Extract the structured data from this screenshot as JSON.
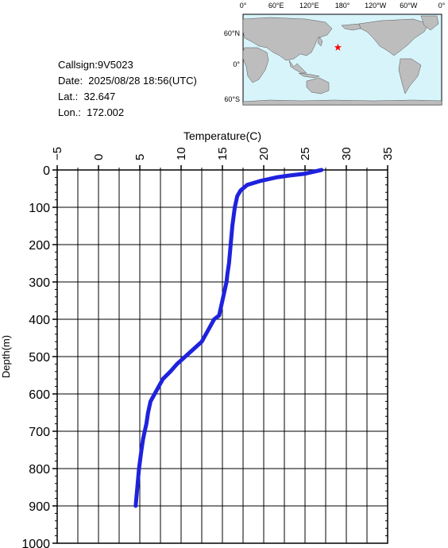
{
  "station": {
    "callsign_label": "Callsign:9V5023",
    "date_label": "Date:  2025/08/28 18:56(UTC)",
    "lat_label": "Lat.:  32.647",
    "lon_label": "Lon.:  172.002"
  },
  "map": {
    "lon_ticks": [
      "0°",
      "60°E",
      "120°E",
      "180°",
      "120°W",
      "60°W",
      "0°"
    ],
    "lat_ticks": [
      "60°N",
      "0°",
      "60°S"
    ],
    "ocean_color": "#d8f4fb",
    "land_color": "#bdbdbd",
    "marker_color": "#ff0000",
    "marker": {
      "lat": 32.647,
      "lon": 172.002
    }
  },
  "chart_data": {
    "type": "line",
    "title": "",
    "xlabel": "Temperature(C)",
    "ylabel": "Depth(m)",
    "xlim": [
      -5,
      35
    ],
    "ylim": [
      1000,
      0
    ],
    "x_ticks": [
      -5,
      0,
      5,
      10,
      15,
      20,
      25,
      30,
      35
    ],
    "y_ticks": [
      0,
      100,
      200,
      300,
      400,
      500,
      600,
      700,
      800,
      900,
      1000
    ],
    "x_axis_position": "top",
    "y_axis_inverted": true,
    "grid": true,
    "line_color": "#1f22dd",
    "series": [
      {
        "x": [
          27.0,
          25.0,
          23.0,
          21.5,
          19.5,
          18.0,
          17.2,
          16.8,
          16.5,
          16.2,
          16.0,
          15.8,
          15.6,
          15.5,
          15.3,
          15.0,
          14.8,
          14.6,
          14.0,
          13.5,
          13.0,
          12.5,
          11.5,
          10.5,
          9.5,
          8.7,
          7.8,
          7.3,
          6.8,
          6.3,
          6.0,
          5.8,
          5.6,
          5.4,
          5.2,
          4.9,
          4.7,
          4.5
        ],
        "y": [
          0,
          10,
          15,
          20,
          30,
          40,
          55,
          70,
          100,
          150,
          200,
          250,
          280,
          300,
          320,
          350,
          370,
          390,
          400,
          420,
          440,
          460,
          480,
          500,
          520,
          540,
          560,
          580,
          600,
          620,
          650,
          680,
          700,
          720,
          750,
          800,
          850,
          900
        ]
      }
    ]
  }
}
